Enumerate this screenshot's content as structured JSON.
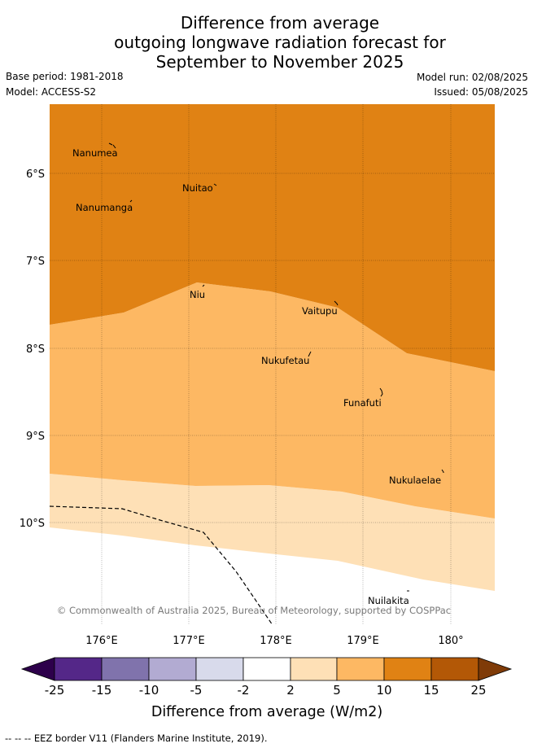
{
  "title": {
    "line1": "Difference from average",
    "line2": "outgoing longwave radiation forecast for",
    "line3": "September to November 2025"
  },
  "meta": {
    "base_period": "Base period: 1981-2018",
    "model": "Model: ACCESS-S2",
    "model_run": "Model run: 02/08/2025",
    "issued": "Issued: 05/08/2025"
  },
  "map": {
    "lat_labels": [
      "6°S",
      "7°S",
      "8°S",
      "9°S",
      "10°S"
    ],
    "lon_labels": [
      "176°E",
      "177°E",
      "178°E",
      "179°E",
      "180°"
    ],
    "places": [
      "Nanumea",
      "Nuitao",
      "Nanumanga",
      "Niu",
      "Vaitupu",
      "Nukufetau",
      "Funafuti",
      "Nukulaelae",
      "Nuilakita"
    ],
    "copyright": "© Commonwealth of Australia 2025, Bureau of Meteorology, supported by COSPPac",
    "colors": {
      "band_10_15": "#e08214",
      "band_5_10": "#fdb863",
      "band_2_5": "#fee0b6"
    }
  },
  "legend": {
    "ticks": [
      "-25",
      "-15",
      "-10",
      "-5",
      "-2",
      "2",
      "5",
      "10",
      "15",
      "25"
    ],
    "label": "Difference from average (W/m2)",
    "colors": [
      "#2d004b",
      "#542788",
      "#8073ac",
      "#b2abd2",
      "#d8daeb",
      "#ffffff",
      "#fee0b6",
      "#fdb863",
      "#e08214",
      "#b35806",
      "#7f3b08"
    ]
  },
  "footer": "-- -- -- EEZ border V11 (Flanders Marine Institute, 2019)."
}
